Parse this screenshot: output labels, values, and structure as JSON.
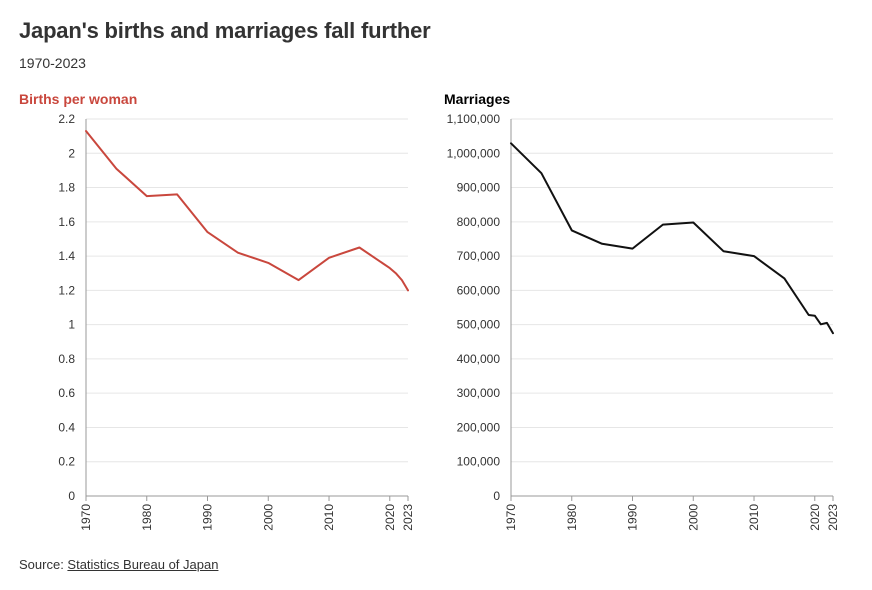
{
  "header": {
    "title": "Japan's births and marriages fall further",
    "subtitle": "1970-2023"
  },
  "source": {
    "prefix": "Source: ",
    "link_text": "Statistics Bureau of Japan"
  },
  "colors": {
    "births_line": "#c9473d",
    "marriages_line": "#111111",
    "grid": "#e6e6e6",
    "axis": "#999999"
  },
  "chart_data": [
    {
      "type": "line",
      "title": "Births per woman",
      "title_color": "#c9473d",
      "x_ticks": [
        1970,
        1980,
        1990,
        2000,
        2010,
        2020,
        2023
      ],
      "xlim": [
        1970,
        2023
      ],
      "y_ticks": [
        0,
        0.2,
        0.4,
        0.6,
        0.8,
        1,
        1.2,
        1.4,
        1.6,
        1.8,
        2,
        2.2
      ],
      "y_tick_labels": [
        "0",
        "0.2",
        "0.4",
        "0.6",
        "0.8",
        "1",
        "1.2",
        "1.4",
        "1.6",
        "1.8",
        "2",
        "2.2"
      ],
      "ylim": [
        0,
        2.2
      ],
      "grid": true,
      "series": [
        {
          "x": [
            1970,
            1975,
            1980,
            1985,
            1990,
            1995,
            2000,
            2005,
            2010,
            2015,
            2020,
            2021,
            2022,
            2023
          ],
          "y": [
            2.13,
            1.91,
            1.75,
            1.76,
            1.54,
            1.42,
            1.36,
            1.26,
            1.39,
            1.45,
            1.33,
            1.3,
            1.26,
            1.2
          ]
        }
      ]
    },
    {
      "type": "line",
      "title": "Marriages",
      "title_color": "#000000",
      "x_ticks": [
        1970,
        1980,
        1990,
        2000,
        2010,
        2020,
        2023
      ],
      "xlim": [
        1970,
        2023
      ],
      "y_ticks": [
        0,
        100000,
        200000,
        300000,
        400000,
        500000,
        600000,
        700000,
        800000,
        900000,
        1000000,
        1100000
      ],
      "y_tick_labels": [
        "0",
        "100,000",
        "200,000",
        "300,000",
        "400,000",
        "500,000",
        "600,000",
        "700,000",
        "800,000",
        "900,000",
        "1,000,000",
        "1,100,000"
      ],
      "ylim": [
        0,
        1100000
      ],
      "grid": true,
      "series": [
        {
          "x": [
            1970,
            1975,
            1980,
            1985,
            1990,
            1995,
            2000,
            2005,
            2010,
            2015,
            2019,
            2020,
            2021,
            2022,
            2023
          ],
          "y": [
            1029000,
            942000,
            775000,
            736000,
            722000,
            792000,
            798000,
            714000,
            700000,
            635000,
            528000,
            526000,
            501000,
            505000,
            475000
          ]
        }
      ]
    }
  ]
}
